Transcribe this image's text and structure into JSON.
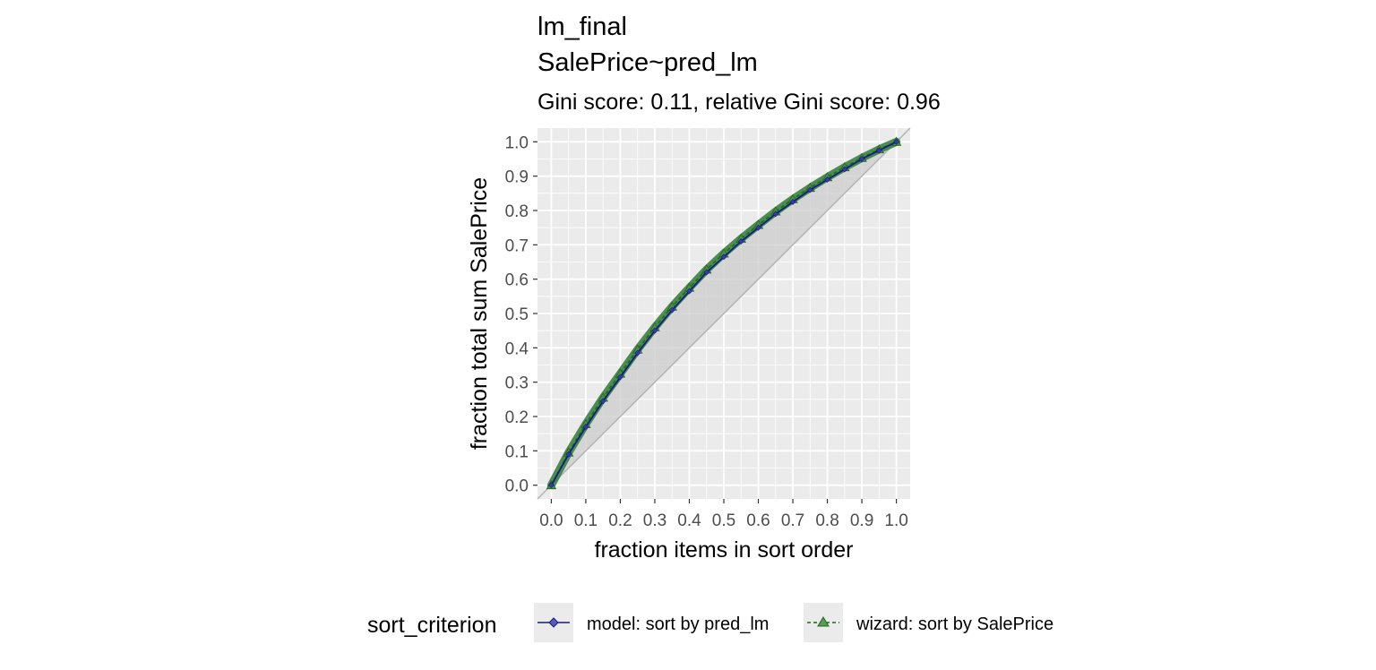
{
  "chart_data": {
    "type": "line",
    "title": [
      "lm_final",
      "SalePrice~pred_lm"
    ],
    "subtitle": "Gini score: 0.11, relative Gini score: 0.96",
    "xlabel": "fraction items in sort order",
    "ylabel": "fraction total sum SalePrice",
    "xlim": [
      -0.04,
      1.04
    ],
    "ylim": [
      -0.04,
      1.04
    ],
    "x_ticks": [
      "0.0",
      "0.1",
      "0.2",
      "0.3",
      "0.4",
      "0.5",
      "0.6",
      "0.7",
      "0.8",
      "0.9",
      "1.0"
    ],
    "y_ticks": [
      "0.0",
      "0.1",
      "0.2",
      "0.3",
      "0.4",
      "0.5",
      "0.6",
      "0.7",
      "0.8",
      "0.9",
      "1.0"
    ],
    "grid": true,
    "background": "#ebebeb",
    "diagonal_reference": true,
    "shaded_area": "between curve and diagonal",
    "legend": {
      "title": "sort_criterion",
      "position": "bottom"
    },
    "x": [
      0.0,
      0.05,
      0.1,
      0.15,
      0.2,
      0.25,
      0.3,
      0.35,
      0.4,
      0.45,
      0.5,
      0.55,
      0.6,
      0.65,
      0.7,
      0.75,
      0.8,
      0.85,
      0.9,
      0.95,
      1.0
    ],
    "series": [
      {
        "name": "model: sort by pred_lm",
        "color": "#1a1a8c",
        "line": "solid",
        "marker": "diamond",
        "values": [
          0.0,
          0.09,
          0.17,
          0.245,
          0.315,
          0.385,
          0.45,
          0.51,
          0.565,
          0.62,
          0.665,
          0.71,
          0.75,
          0.79,
          0.825,
          0.86,
          0.89,
          0.92,
          0.95,
          0.975,
          1.0
        ]
      },
      {
        "name": "wizard: sort by SalePrice",
        "color": "#1b6b1b",
        "line": "dashed",
        "marker": "triangle",
        "values": [
          0.0,
          0.095,
          0.178,
          0.255,
          0.325,
          0.395,
          0.46,
          0.52,
          0.575,
          0.628,
          0.675,
          0.718,
          0.758,
          0.797,
          0.833,
          0.866,
          0.897,
          0.926,
          0.953,
          0.978,
          1.0
        ]
      }
    ]
  }
}
